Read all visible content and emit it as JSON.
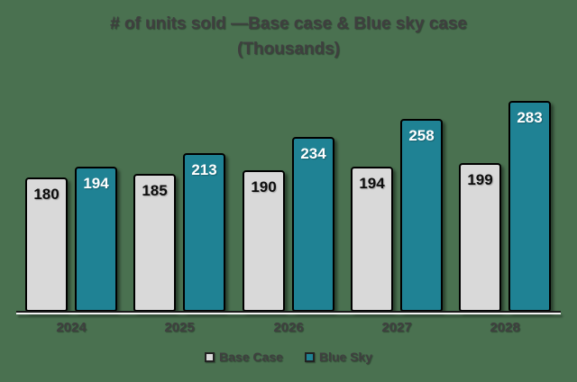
{
  "title": {
    "line1": "# of units sold —Base case & Blue sky case",
    "line2": "(Thousands)"
  },
  "chart_data": {
    "type": "bar",
    "title": "# of units sold —Base case & Blue sky case (Thousands)",
    "categories": [
      "2024",
      "2025",
      "2026",
      "2027",
      "2028"
    ],
    "series": [
      {
        "name": "Base Case",
        "values": [
          180,
          185,
          190,
          194,
          199
        ],
        "color": "#D9D9D9",
        "label_color": "#0D0D0D"
      },
      {
        "name": "Blue Sky",
        "values": [
          194,
          213,
          234,
          258,
          283
        ],
        "color": "#1F8294",
        "label_color": "#FFFFFF"
      }
    ],
    "xlabel": "",
    "ylabel": "",
    "ylim": [
      0,
      300
    ],
    "grid": false,
    "y_axis_visible": false,
    "data_labels": "inside-top",
    "legend_position": "bottom"
  },
  "colors": {
    "background": "#4A7150",
    "bar_border": "#000000",
    "text": "#3F3F3F",
    "axis": "#1A1A1A",
    "axis_highlight": "#F2F2F2"
  }
}
